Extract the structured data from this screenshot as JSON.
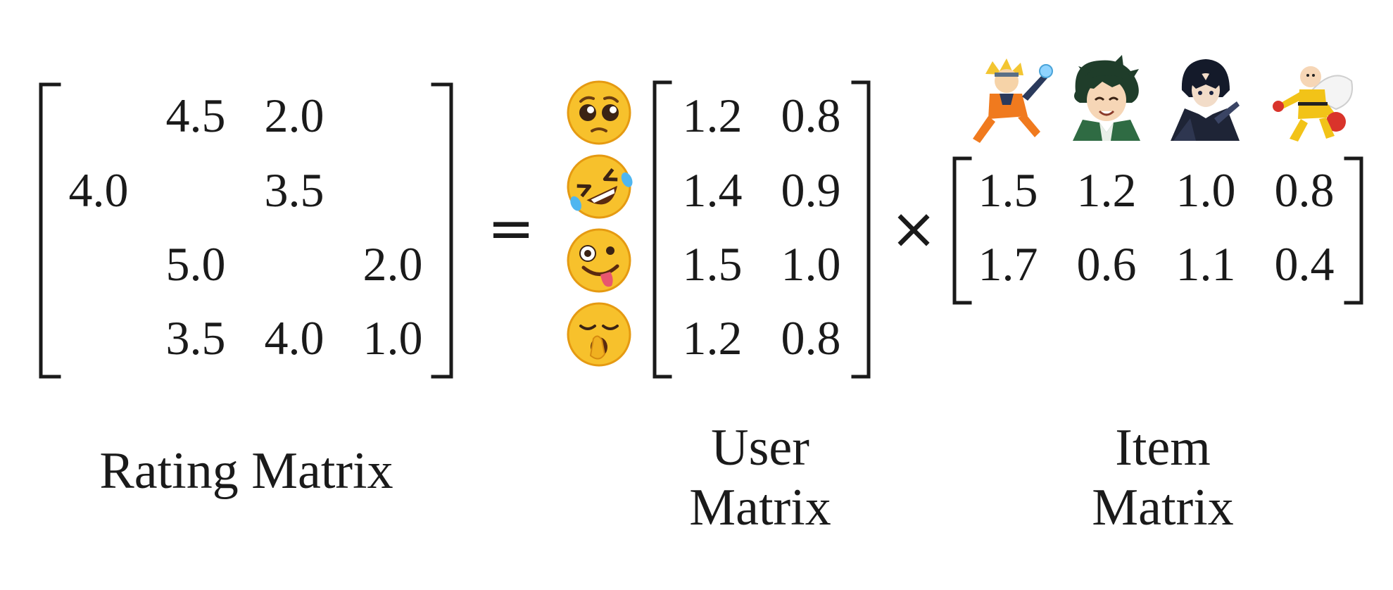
{
  "rating_matrix": {
    "rows": [
      [
        "",
        "4.5",
        "2.0",
        ""
      ],
      [
        "4.0",
        "",
        "3.5",
        ""
      ],
      [
        "",
        "5.0",
        "",
        "2.0"
      ],
      [
        "",
        "3.5",
        "4.0",
        "1.0"
      ]
    ],
    "caption": "Rating Matrix"
  },
  "equals_sign": "=",
  "user_matrix": {
    "rows": [
      [
        "1.2",
        "0.8"
      ],
      [
        "1.4",
        "0.9"
      ],
      [
        "1.5",
        "1.0"
      ],
      [
        "1.2",
        "0.8"
      ]
    ],
    "caption_line1": "User",
    "caption_line2": "Matrix",
    "user_icons": [
      "pleading-face-emoji",
      "rolling-on-floor-laughing-emoji",
      "zany-face-emoji",
      "yawning-face-emoji"
    ]
  },
  "times_sign": "×",
  "item_matrix": {
    "rows": [
      [
        "1.5",
        "1.2",
        "1.0",
        "0.8"
      ],
      [
        "1.7",
        "0.6",
        "1.1",
        "0.4"
      ]
    ],
    "caption_line1": "Item",
    "caption_line2": "Matrix",
    "item_icons": [
      "naruto-character-icon",
      "deku-character-icon",
      "kirito-character-icon",
      "saitama-character-icon"
    ]
  },
  "colors": {
    "ink": "#1a1a1a",
    "emoji_yellow": "#f7c12c",
    "emoji_shade": "#e59a12"
  }
}
